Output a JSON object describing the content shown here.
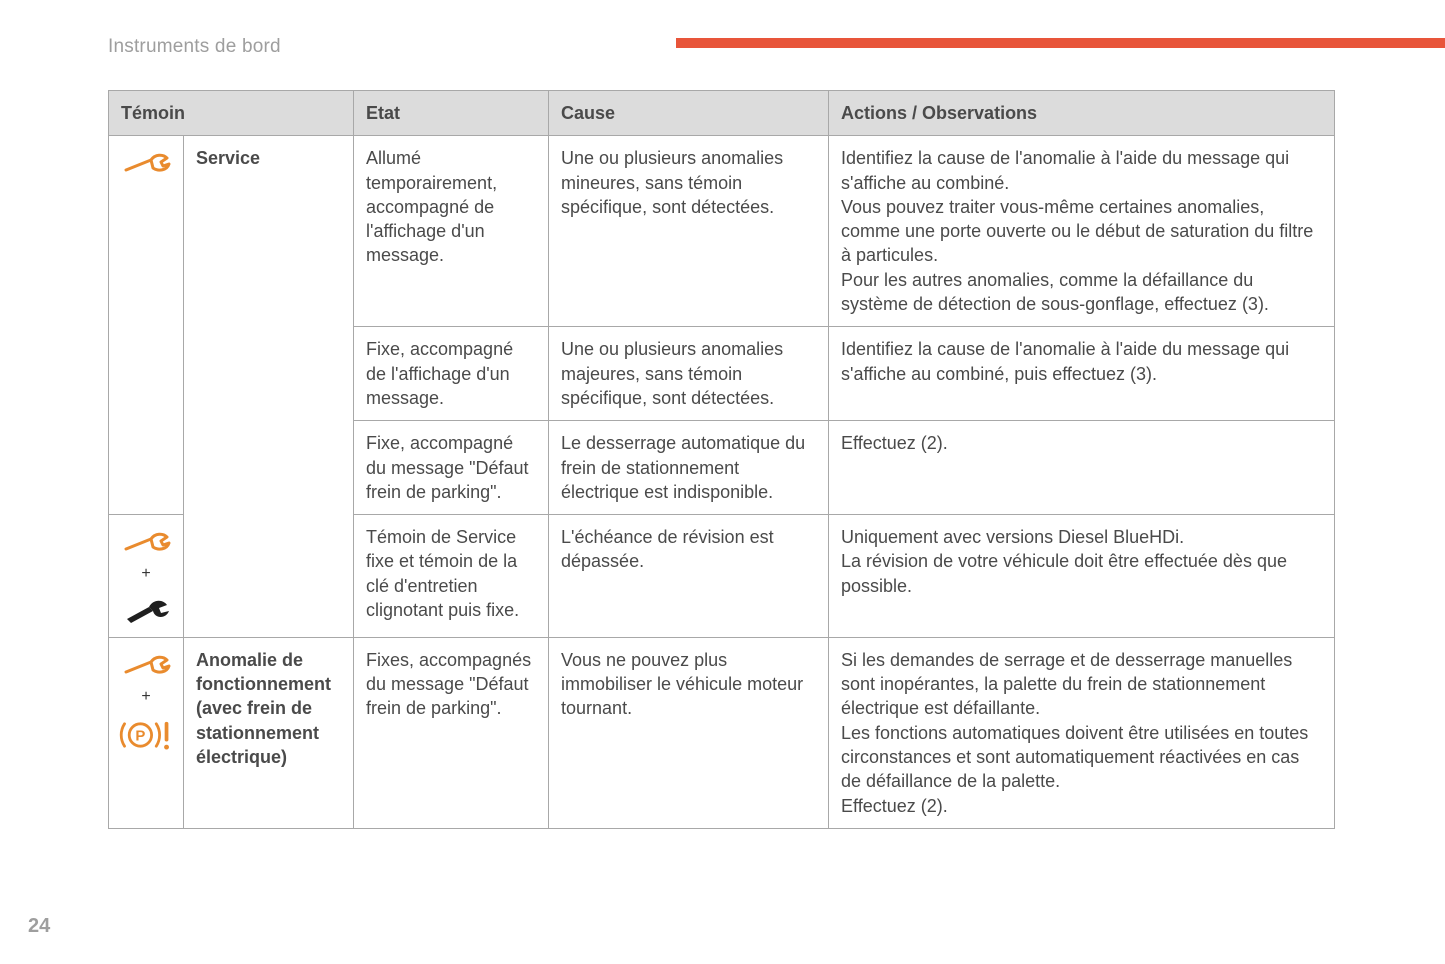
{
  "page": {
    "section_title": "Instruments de bord",
    "page_number": "24",
    "accent_color": "#e8553a",
    "header_bg": "#dcdcdc",
    "border_color": "#a8a8a8",
    "text_color": "#4a4a4a",
    "muted_text_color": "#9e9e9e",
    "icon_orange": "#e98b2e",
    "icon_black": "#1f1f1f"
  },
  "headers": {
    "temoin": "Témoin",
    "etat": "Etat",
    "cause": "Cause",
    "actions": "Actions / Observations"
  },
  "rows": [
    {
      "icon_group": "service",
      "name": "Service",
      "etat": "Allumé temporairement, accompagné de l'affichage d'un message.",
      "cause": "Une ou plusieurs anomalies mineures, sans témoin spécifique, sont détectées.",
      "actions": "Identifiez la cause de l'anomalie à l'aide du message qui s'affiche au combiné.\nVous pouvez traiter vous-même certaines anomalies, comme une porte ouverte ou le début de saturation du filtre à particules.\nPour les autres anomalies, comme la défaillance du système de détection de sous-gonflage, effectuez (3)."
    },
    {
      "etat": "Fixe, accompagné de l'affichage d'un message.",
      "cause": "Une ou plusieurs anomalies majeures, sans témoin spécifique, sont détectées.",
      "actions": "Identifiez la cause de l'anomalie à l'aide du message qui s'affiche au combiné, puis effectuez (3)."
    },
    {
      "etat": "Fixe, accompagné du message \"Défaut frein de parking\".",
      "cause": "Le desserrage automatique du frein de stationnement électrique est indisponible.",
      "actions": "Effectuez (2)."
    },
    {
      "icon_group": "service_plus_wrench",
      "etat": "Témoin de Service fixe et témoin de la clé d'entretien clignotant puis fixe.",
      "cause": "L'échéance de révision est dépassée.",
      "actions": "Uniquement avec versions Diesel BlueHDi.\nLa révision de votre véhicule doit être effectuée dès que possible."
    },
    {
      "icon_group": "service_plus_parking",
      "name": "Anomalie de fonctionnement (avec frein de stationnement électrique)",
      "etat": "Fixes, accompagnés du message \"Défaut frein de parking\".",
      "cause": "Vous ne pouvez plus immobiliser le véhicule moteur tournant.",
      "actions": "Si les demandes de serrage et de desserrage manuelles sont inopérantes, la palette du frein de stationnement électrique est défaillante.\nLes fonctions automatiques doivent être utilisées en toutes circonstances et sont automatiquement réactivées en cas de défaillance de la palette.\nEffectuez (2)."
    }
  ]
}
